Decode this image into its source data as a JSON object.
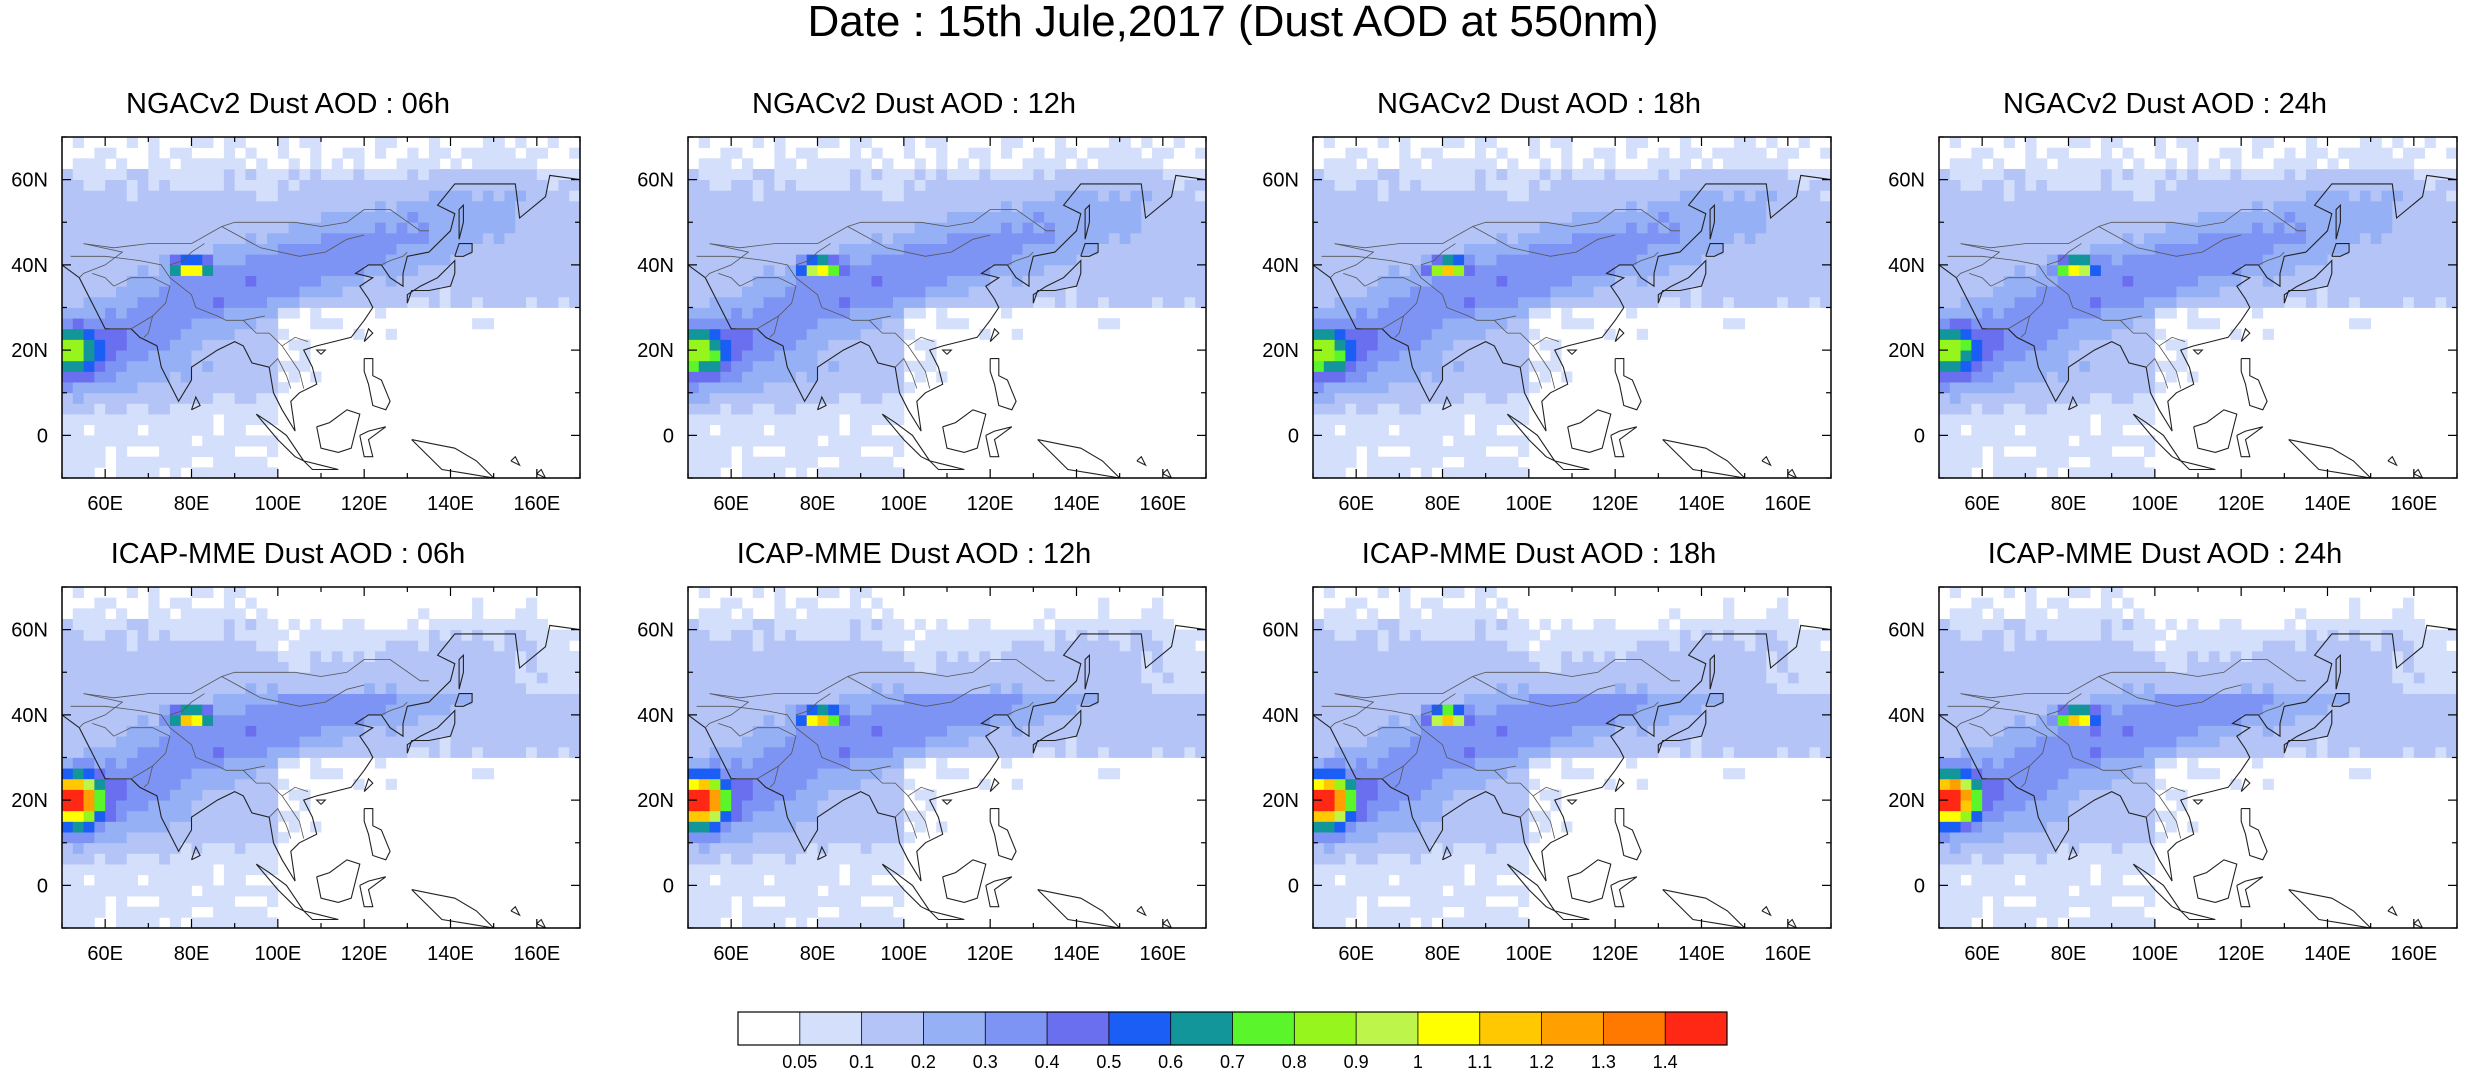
{
  "title": "Date : 15th Jule,2017 (Dust AOD at 550nm)",
  "panels": [
    {
      "title": "NGACv2 Dust AOD : 06h",
      "model": "NGACv2",
      "hour": 6
    },
    {
      "title": "NGACv2 Dust AOD : 12h",
      "model": "NGACv2",
      "hour": 12
    },
    {
      "title": "NGACv2 Dust AOD : 18h",
      "model": "NGACv2",
      "hour": 18
    },
    {
      "title": "NGACv2 Dust AOD : 24h",
      "model": "NGACv2",
      "hour": 24
    },
    {
      "title": "ICAP-MME Dust AOD : 06h",
      "model": "ICAP-MME",
      "hour": 6
    },
    {
      "title": "ICAP-MME Dust AOD : 12h",
      "model": "ICAP-MME",
      "hour": 12
    },
    {
      "title": "ICAP-MME Dust AOD : 18h",
      "model": "ICAP-MME",
      "hour": 18
    },
    {
      "title": "ICAP-MME Dust AOD : 24h",
      "model": "ICAP-MME",
      "hour": 24
    }
  ],
  "map": {
    "lon_range": [
      50,
      170
    ],
    "lat_range": [
      -10,
      70
    ],
    "lon_ticks": [
      60,
      80,
      100,
      120,
      140,
      160
    ],
    "lon_tick_labels": [
      "60E",
      "80E",
      "100E",
      "120E",
      "140E",
      "160E"
    ],
    "lat_ticks": [
      0,
      20,
      40,
      60
    ],
    "lat_tick_labels": [
      "0",
      "20N",
      "40N",
      "60N"
    ]
  },
  "colorbar": {
    "labels": [
      "0.05",
      "0.1",
      "0.2",
      "0.3",
      "0.4",
      "0.5",
      "0.6",
      "0.7",
      "0.8",
      "0.9",
      "1",
      "1.1",
      "1.2",
      "1.3",
      "1.4"
    ],
    "colors": [
      "#ffffff",
      "#d4dffb",
      "#b4c4f7",
      "#96b0f5",
      "#7e94f5",
      "#6a6ff0",
      "#1a5ef5",
      "#12969a",
      "#5af52a",
      "#96f51c",
      "#bef54a",
      "#ffff00",
      "#ffc800",
      "#ffa000",
      "#ff7800",
      "#ff2814"
    ]
  }
}
